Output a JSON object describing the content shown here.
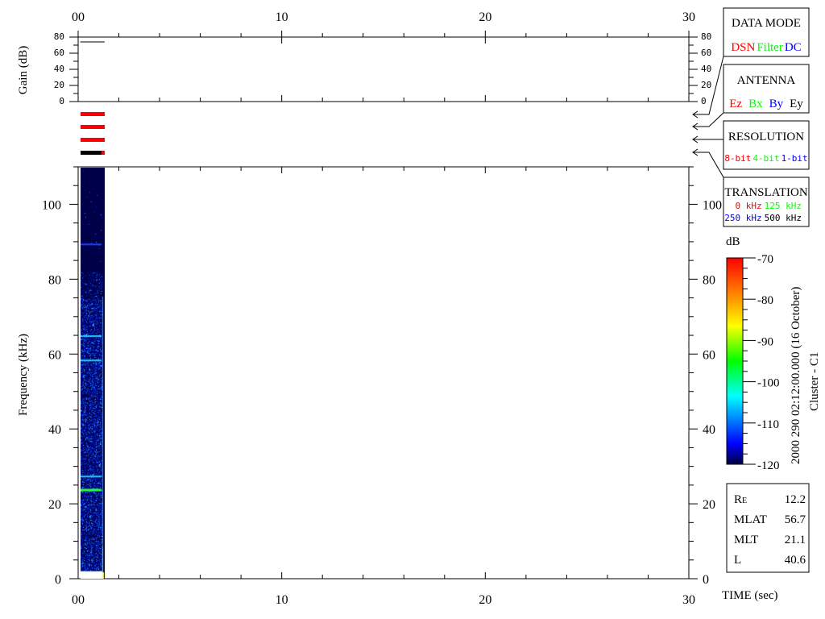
{
  "chart_data": {
    "type": "heatmap",
    "xlabel": "TIME (sec)",
    "xlim": [
      0,
      30
    ],
    "x_major_ticks": [
      0,
      10,
      20,
      30
    ],
    "x_tick_labels": [
      "00",
      "10",
      "20",
      "30"
    ],
    "gain_panel": {
      "ylabel": "Gain (dB)",
      "ylim": [
        0,
        80
      ],
      "tick_labels": [
        "0",
        "20",
        "40",
        "60",
        "80"
      ],
      "gain_db": 74,
      "data_time_range_sec": [
        0.1,
        1.3
      ]
    },
    "spectrogram": {
      "ylabel": "Frequency (kHz)",
      "ylim": [
        0,
        110
      ],
      "tick_labels": [
        "0",
        "20",
        "40",
        "60",
        "80",
        "100"
      ],
      "data_time_range_sec": [
        0.1,
        1.3
      ],
      "data_freq_range_khz": [
        2,
        110
      ],
      "narrowband_lines_khz": [
        89.5,
        65,
        58.5,
        27.5,
        24
      ]
    },
    "colorbar": {
      "label": "dB",
      "range": [
        -120,
        -70
      ],
      "tick_labels": [
        "-70",
        "-80",
        "-90",
        "-100",
        "-110",
        "-120"
      ],
      "colormap": [
        "#000040",
        "#0000ff",
        "#00ffff",
        "#00ff00",
        "#ffff00",
        "#ff8000",
        "#ff0000"
      ]
    }
  },
  "timestamp": "2000 290 02:12:00.000 (16 October)",
  "spacecraft": "Cluster - C1",
  "legend": {
    "data_mode": {
      "title": "DATA MODE",
      "items": [
        {
          "label": "DSN",
          "color": "#ff0000"
        },
        {
          "label": "Filter",
          "color": "#00ff00"
        },
        {
          "label": "DC",
          "color": "#0000ff"
        }
      ]
    },
    "antenna": {
      "title": "ANTENNA",
      "items": [
        {
          "label": "Ez",
          "color": "#ff0000"
        },
        {
          "label": "Bx",
          "color": "#00ff00"
        },
        {
          "label": "By",
          "color": "#0000ff"
        },
        {
          "label": "Ey",
          "color": "#000000"
        }
      ]
    },
    "resolution": {
      "title": "RESOLUTION",
      "items": [
        {
          "label": "8-bit",
          "color": "#ff0000"
        },
        {
          "label": "4-bit",
          "color": "#00ff00"
        },
        {
          "label": "1-bit",
          "color": "#0000ff"
        }
      ]
    },
    "translation": {
      "title": "TRANSLATION",
      "items": [
        {
          "label": "0 kHz",
          "color": "#ff0000"
        },
        {
          "label": "125 kHz",
          "color": "#00ff00"
        },
        {
          "label": "250 kHz",
          "color": "#0000ff"
        },
        {
          "label": "500 kHz",
          "color": "#000000"
        }
      ]
    }
  },
  "status_bars": [
    "#ff0000",
    "#ff0000",
    "#ff0000",
    "#000000"
  ],
  "orbit": [
    {
      "label": "R",
      "sub": "E",
      "value": "12.2"
    },
    {
      "label": "MLAT",
      "sub": "",
      "value": "56.7"
    },
    {
      "label": "MLT",
      "sub": "",
      "value": "21.1"
    },
    {
      "label": "L",
      "sub": "",
      "value": "40.6"
    }
  ]
}
